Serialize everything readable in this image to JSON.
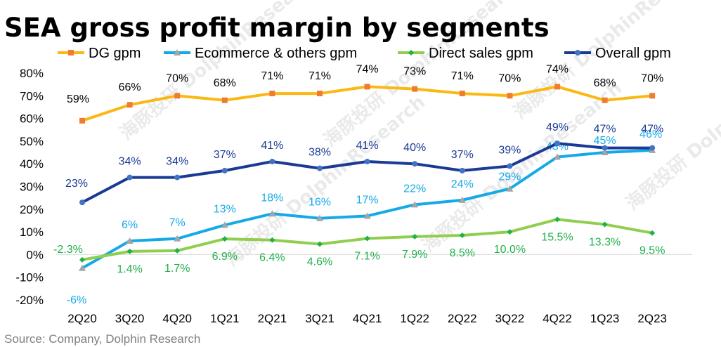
{
  "chart_data": {
    "type": "line",
    "title": "SEA gross profit margin by segments",
    "categories": [
      "2Q20",
      "3Q20",
      "4Q20",
      "1Q21",
      "2Q21",
      "3Q21",
      "4Q21",
      "1Q22",
      "2Q22",
      "3Q22",
      "4Q22",
      "1Q23",
      "2Q23"
    ],
    "ylim": [
      -20,
      80
    ],
    "yticks": [
      "80%",
      "70%",
      "60%",
      "50%",
      "40%",
      "30%",
      "20%",
      "10%",
      "0%",
      "-10%",
      "-20%"
    ],
    "ytick_values": [
      80,
      70,
      60,
      50,
      40,
      30,
      20,
      10,
      0,
      -10,
      -20
    ],
    "legend_position": "top",
    "grid": false,
    "series": [
      {
        "name": "DG gpm",
        "color": "#fbb713",
        "marker": "square",
        "values": [
          59,
          66,
          70,
          68,
          71,
          71,
          74,
          73,
          71,
          70,
          74,
          68,
          70
        ],
        "labels": [
          "59%",
          "66%",
          "70%",
          "68%",
          "71%",
          "71%",
          "74%",
          "73%",
          "71%",
          "70%",
          "74%",
          "68%",
          "70%"
        ],
        "label_color": "#000000"
      },
      {
        "name": "Ecommerce & others gpm",
        "color": "#16a9e8",
        "marker": "triangle",
        "values": [
          -6,
          6,
          7,
          13,
          18,
          16,
          17,
          22,
          24,
          29,
          43,
          45,
          46
        ],
        "labels": [
          "-6%",
          "6%",
          "7%",
          "13%",
          "18%",
          "16%",
          "17%",
          "22%",
          "24%",
          "29%",
          "43%",
          "45%",
          "46%"
        ],
        "label_color": "#16a9e8"
      },
      {
        "name": "Direct sales gpm",
        "color": "#8fce4f",
        "marker": "diamond",
        "values": [
          -2.3,
          1.4,
          1.7,
          6.9,
          6.4,
          4.6,
          7.1,
          7.9,
          8.5,
          10.0,
          15.5,
          13.3,
          9.5
        ],
        "labels": [
          "-2.3%",
          "1.4%",
          "1.7%",
          "6.9%",
          "6.4%",
          "4.6%",
          "7.1%",
          "7.9%",
          "8.5%",
          "10.0%",
          "15.5%",
          "13.3%",
          "9.5%"
        ],
        "label_color": "#22b04b"
      },
      {
        "name": "Overall gpm",
        "color": "#1a3a94",
        "marker": "circle",
        "values": [
          23,
          34,
          34,
          37,
          41,
          38,
          41,
          40,
          37,
          39,
          49,
          47,
          47
        ],
        "labels": [
          "23%",
          "34%",
          "34%",
          "37%",
          "41%",
          "38%",
          "41%",
          "40%",
          "37%",
          "39%",
          "49%",
          "47%",
          "47%"
        ],
        "label_color": "#1a3a94"
      }
    ]
  },
  "source": "Source: Company, Dolphin Research",
  "watermark": "海豚投研 DolphinResearch"
}
